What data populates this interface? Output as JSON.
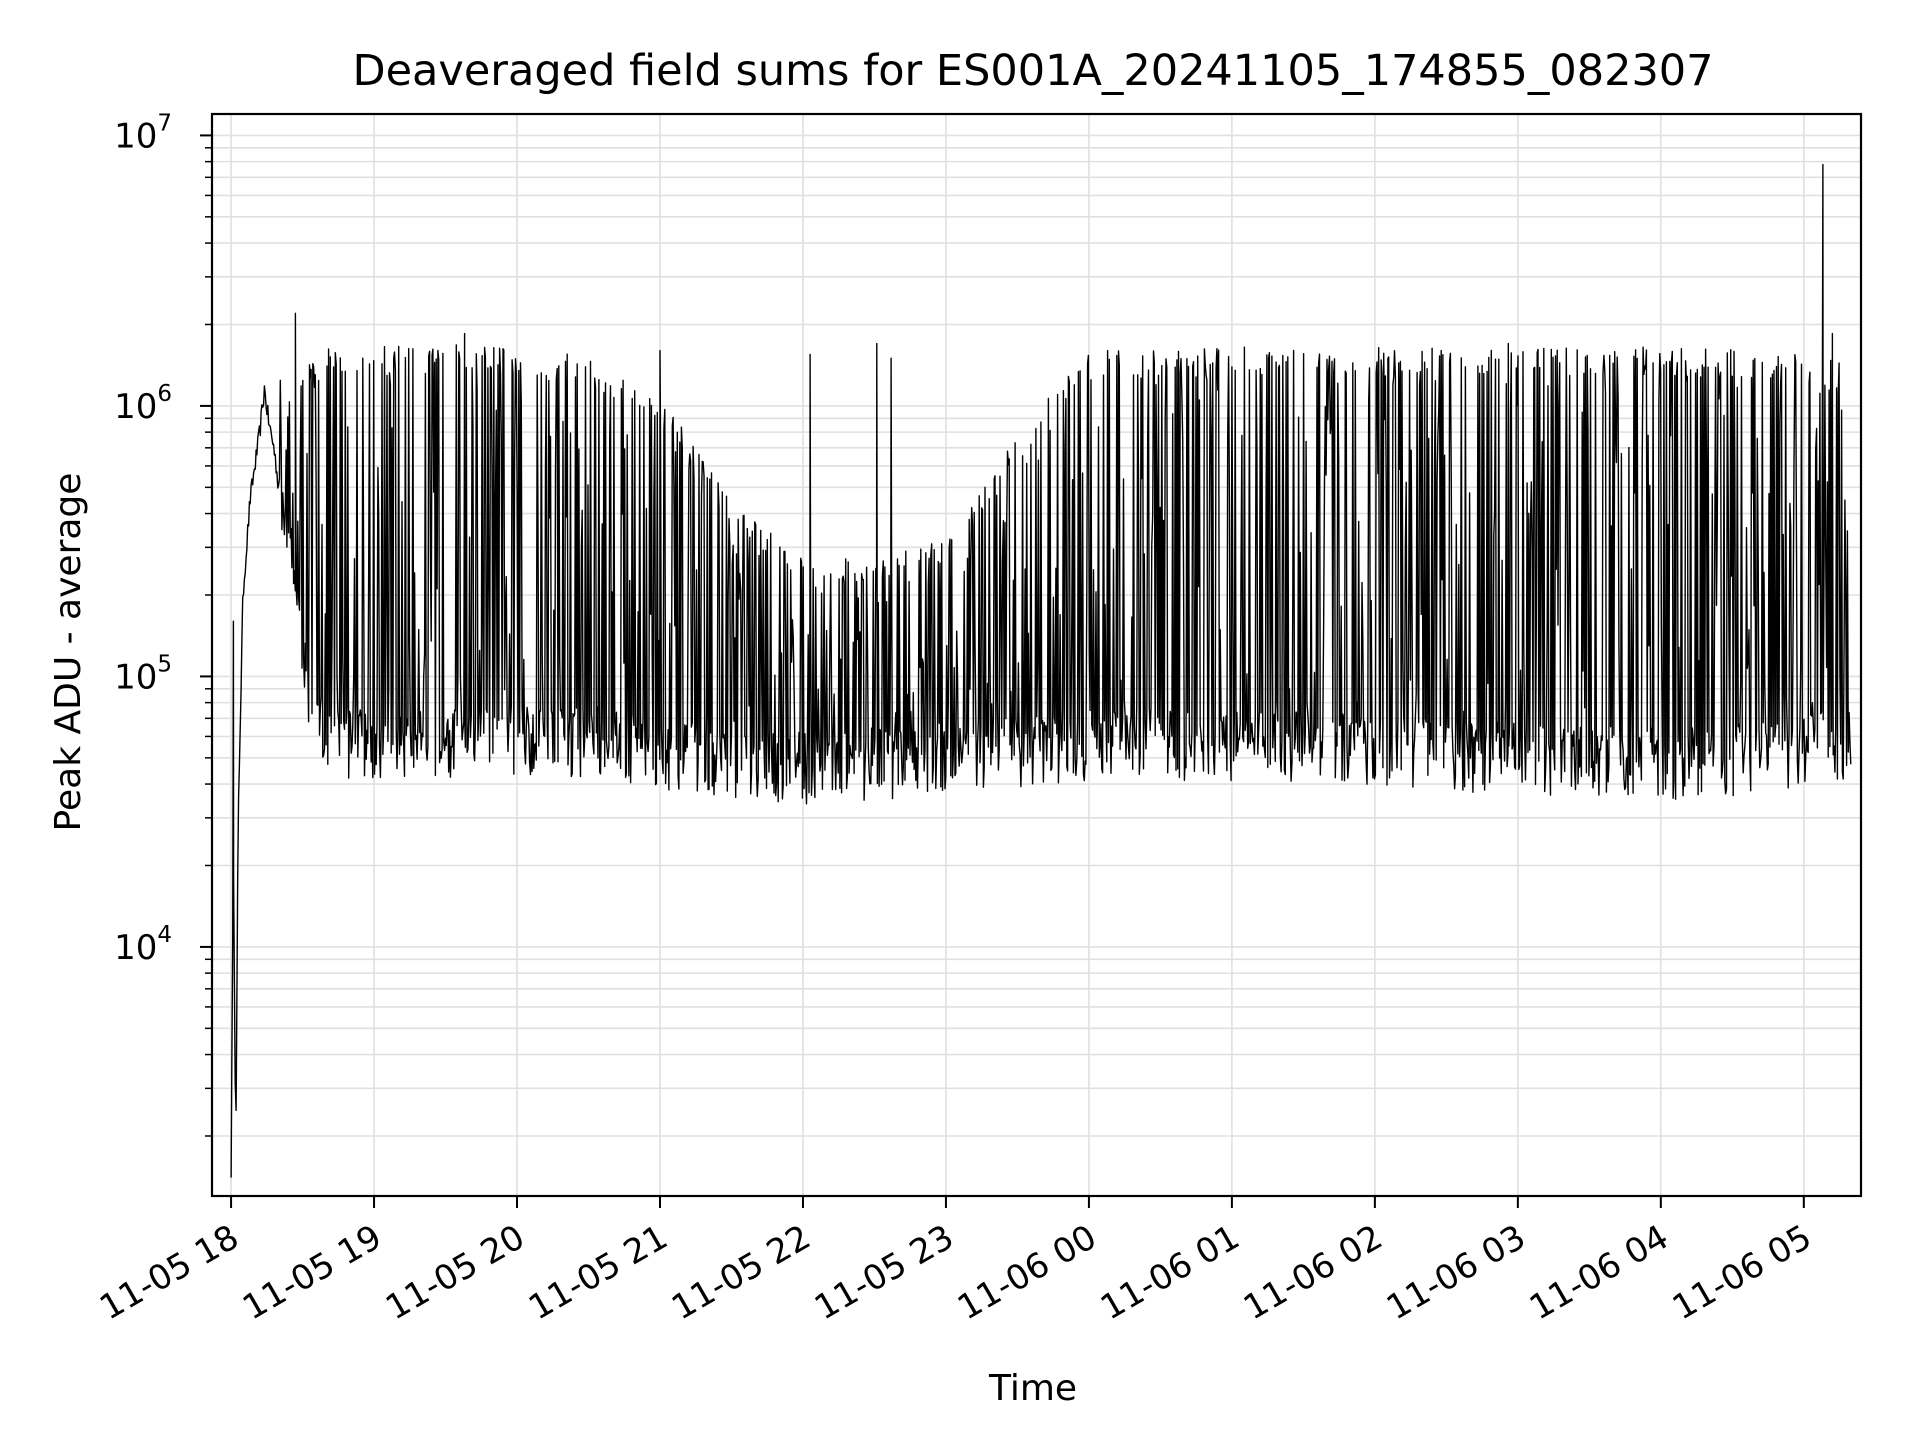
{
  "chart_data": {
    "type": "line",
    "title": "Deaveraged field sums for ES001A_20241105_174855_082307",
    "xlabel": "Time",
    "ylabel": "Peak ADU - average",
    "yscale": "log",
    "ylim": [
      1200,
      12000000
    ],
    "xlim": [
      "2024-11-05 17:52",
      "2024-11-06 05:24"
    ],
    "grid": true,
    "line_color": "#000000",
    "x_ticks": [
      {
        "label": "11-05 18",
        "time": "2024-11-05 18:00"
      },
      {
        "label": "11-05 19",
        "time": "2024-11-05 19:00"
      },
      {
        "label": "11-05 20",
        "time": "2024-11-05 20:00"
      },
      {
        "label": "11-05 21",
        "time": "2024-11-05 21:00"
      },
      {
        "label": "11-05 22",
        "time": "2024-11-05 22:00"
      },
      {
        "label": "11-05 23",
        "time": "2024-11-05 23:00"
      },
      {
        "label": "11-06 00",
        "time": "2024-11-06 00:00"
      },
      {
        "label": "11-06 01",
        "time": "2024-11-06 01:00"
      },
      {
        "label": "11-06 02",
        "time": "2024-11-06 02:00"
      },
      {
        "label": "11-06 03",
        "time": "2024-11-06 03:00"
      },
      {
        "label": "11-06 04",
        "time": "2024-11-06 04:00"
      },
      {
        "label": "11-06 05",
        "time": "2024-11-06 05:00"
      }
    ],
    "y_ticks": [
      {
        "base": "10",
        "exp": "4",
        "value": 10000
      },
      {
        "base": "10",
        "exp": "5",
        "value": 100000
      },
      {
        "base": "10",
        "exp": "6",
        "value": 1000000
      },
      {
        "base": "10",
        "exp": "7",
        "value": 10000000
      }
    ],
    "series": [
      {
        "x": [
          "2024-11-05 18:00",
          "2024-11-05 18:01",
          "2024-11-05 18:02",
          "2024-11-05 18:03",
          "2024-11-05 18:05",
          "2024-11-05 18:08",
          "2024-11-05 18:10",
          "2024-11-05 18:12",
          "2024-11-05 18:14",
          "2024-11-05 18:16",
          "2024-11-05 18:18",
          "2024-11-05 18:20",
          "2024-11-05 18:22",
          "2024-11-05 18:24",
          "2024-11-05 18:26",
          "2024-11-05 18:28",
          "2024-11-05 18:30",
          "2024-11-05 18:33",
          "2024-11-05 18:36",
          "2024-11-05 18:40",
          "2024-11-05 18:45",
          "2024-11-05 18:50",
          "2024-11-05 19:00",
          "2024-11-05 19:30",
          "2024-11-05 20:00",
          "2024-11-05 20:30",
          "2024-11-05 21:00",
          "2024-11-05 21:30",
          "2024-11-05 22:00",
          "2024-11-05 22:30",
          "2024-11-05 23:00",
          "2024-11-05 23:30",
          "2024-11-06 00:00",
          "2024-11-06 01:00",
          "2024-11-06 02:00",
          "2024-11-06 03:00",
          "2024-11-06 04:00",
          "2024-11-06 04:30",
          "2024-11-06 05:00",
          "2024-11-06 05:20"
        ],
        "baseline": [
          1500,
          22000,
          1800,
          30000,
          200000,
          450000,
          600000,
          800000,
          1150000,
          850000,
          700000,
          500000,
          420000,
          320000,
          250000,
          180000,
          130000,
          90000,
          70000,
          62000,
          60000,
          60000,
          58000,
          58000,
          62000,
          60000,
          55000,
          50000,
          48000,
          50000,
          52000,
          55000,
          58000,
          58000,
          56000,
          52000,
          50000,
          50000,
          55000,
          60000
        ],
        "upper": [
          1500,
          22000,
          1800,
          30000,
          200000,
          450000,
          600000,
          800000,
          1150000,
          850000,
          700000,
          1400000,
          1200000,
          1000000,
          800000,
          900000,
          1300000,
          1400000,
          1450000,
          1500000,
          1500000,
          1500000,
          1500000,
          1550000,
          1500000,
          1400000,
          1000000,
          400000,
          250000,
          250000,
          300000,
          700000,
          1500000,
          1500000,
          1500000,
          1500000,
          1500000,
          1500000,
          1400000,
          1350000
        ],
        "spikes": [
          {
            "x": "2024-11-05 18:01",
            "y": 160000
          },
          {
            "x": "2024-11-05 18:27",
            "y": 2200000
          },
          {
            "x": "2024-11-05 19:38",
            "y": 1850000
          },
          {
            "x": "2024-11-05 21:00",
            "y": 1600000
          },
          {
            "x": "2024-11-05 22:03",
            "y": 1550000
          },
          {
            "x": "2024-11-05 22:31",
            "y": 1700000
          },
          {
            "x": "2024-11-05 22:37",
            "y": 1500000
          },
          {
            "x": "2024-11-06 02:56",
            "y": 1700000
          },
          {
            "x": "2024-11-06 05:08",
            "y": 7800000
          },
          {
            "x": "2024-11-06 05:12",
            "y": 1850000
          }
        ]
      }
    ]
  }
}
